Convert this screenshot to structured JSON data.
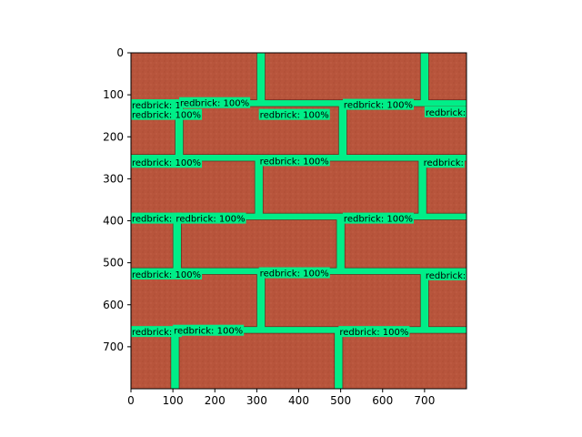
{
  "figure": {
    "box_color": "#00ee88",
    "mortar_color": "#00ee88",
    "axes_color": "#000000"
  },
  "chart_data": {
    "type": "scatter",
    "title": "",
    "xlabel": "",
    "ylabel": "",
    "xlim": [
      0,
      800
    ],
    "ylim": [
      800,
      0
    ],
    "xticks": [
      0,
      100,
      200,
      300,
      400,
      500,
      600,
      700
    ],
    "yticks": [
      0,
      100,
      200,
      300,
      400,
      500,
      600,
      700
    ],
    "grid": false,
    "legend": "none",
    "bricks": [
      {
        "x0": 0,
        "y0": 0,
        "x1": 300,
        "y1": 112
      },
      {
        "x0": 320,
        "y0": 0,
        "x1": 690,
        "y1": 112
      },
      {
        "x0": 710,
        "y0": 0,
        "x1": 800,
        "y1": 112
      },
      {
        "x0": 0,
        "y0": 128,
        "x1": 105,
        "y1": 242
      },
      {
        "x0": 125,
        "y0": 128,
        "x1": 495,
        "y1": 242
      },
      {
        "x0": 515,
        "y0": 128,
        "x1": 800,
        "y1": 242
      },
      {
        "x0": 0,
        "y0": 258,
        "x1": 295,
        "y1": 382
      },
      {
        "x0": 315,
        "y0": 258,
        "x1": 685,
        "y1": 382
      },
      {
        "x0": 705,
        "y0": 258,
        "x1": 800,
        "y1": 382
      },
      {
        "x0": 0,
        "y0": 398,
        "x1": 100,
        "y1": 512
      },
      {
        "x0": 120,
        "y0": 398,
        "x1": 490,
        "y1": 512
      },
      {
        "x0": 510,
        "y0": 398,
        "x1": 800,
        "y1": 512
      },
      {
        "x0": 0,
        "y0": 528,
        "x1": 300,
        "y1": 652
      },
      {
        "x0": 320,
        "y0": 528,
        "x1": 690,
        "y1": 652
      },
      {
        "x0": 710,
        "y0": 528,
        "x1": 800,
        "y1": 652
      },
      {
        "x0": 0,
        "y0": 668,
        "x1": 95,
        "y1": 800
      },
      {
        "x0": 115,
        "y0": 668,
        "x1": 485,
        "y1": 800
      },
      {
        "x0": 505,
        "y0": 668,
        "x1": 800,
        "y1": 800
      }
    ],
    "detections": [
      {
        "text": "redbrick: 1",
        "x": 0,
        "y": 115
      },
      {
        "text": "redbrick: 100%",
        "x": 115,
        "y": 110
      },
      {
        "text": "redbrick: 100%",
        "x": 505,
        "y": 114
      },
      {
        "text": "redbrick: 100%",
        "x": 0,
        "y": 138
      },
      {
        "text": "redbrick: 100%",
        "x": 305,
        "y": 138
      },
      {
        "text": "redbrick:",
        "x": 700,
        "y": 132
      },
      {
        "text": "redbrick: 100%",
        "x": 0,
        "y": 252
      },
      {
        "text": "redbrick: 100%",
        "x": 305,
        "y": 248
      },
      {
        "text": "redbrick:",
        "x": 695,
        "y": 252
      },
      {
        "text": "redbrick: 1",
        "x": 0,
        "y": 385
      },
      {
        "text": "redbrick: 100%",
        "x": 105,
        "y": 385
      },
      {
        "text": "redbrick: 100%",
        "x": 505,
        "y": 385
      },
      {
        "text": "redbrick: 100%",
        "x": 0,
        "y": 518
      },
      {
        "text": "redbrick: 100%",
        "x": 305,
        "y": 515
      },
      {
        "text": "redbrick:",
        "x": 700,
        "y": 520
      },
      {
        "text": "redbrick: 1",
        "x": 0,
        "y": 655
      },
      {
        "text": "redbrick: 100%",
        "x": 100,
        "y": 652
      },
      {
        "text": "redbrick: 100%",
        "x": 495,
        "y": 655
      }
    ]
  }
}
